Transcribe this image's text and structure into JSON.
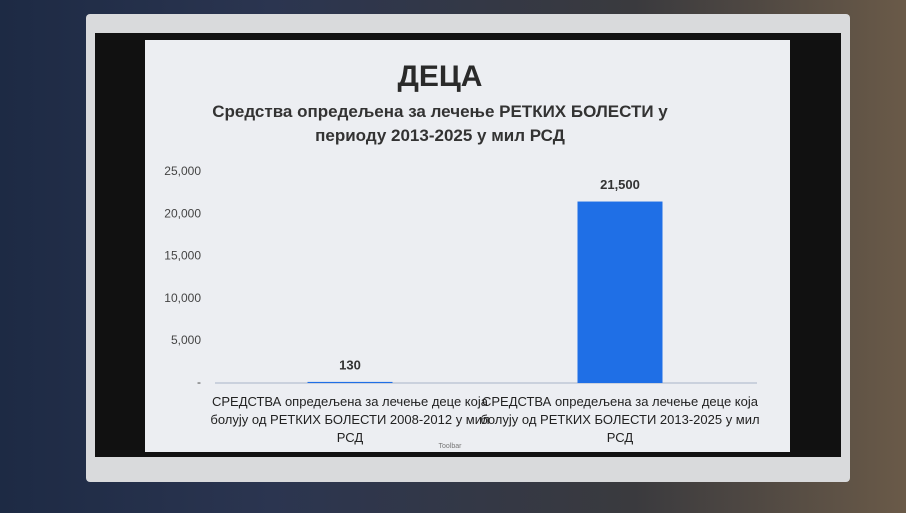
{
  "chart_data": {
    "type": "bar",
    "title": "ДЕЦА",
    "subtitle": "Средства опредељена за лечење РЕТКИХ БОЛЕСТИ у периоду 2013-2025  у мил РСД",
    "categories": [
      "СРЕДСТВА опредељена за лечење деце која болују од РЕТКИХ БОЛЕСТИ 2008-2012 у мил РСД",
      "СРЕДСТВА опредељена за лечење деце која болују од РЕТКИХ БОЛЕСТИ 2013-2025 у мил РСД"
    ],
    "values": [
      130,
      21500
    ],
    "value_labels": [
      "130",
      "21,500"
    ],
    "color": "#1f6fe6",
    "ylim": [
      0,
      25000
    ],
    "yticks": [
      {
        "value": 0,
        "label": "-"
      },
      {
        "value": 5000,
        "label": "5,000"
      },
      {
        "value": 10000,
        "label": "10,000"
      },
      {
        "value": 15000,
        "label": "15,000"
      },
      {
        "value": 20000,
        "label": "20,000"
      },
      {
        "value": 25000,
        "label": "25,000"
      }
    ],
    "grid": false
  },
  "screen": {
    "toolbar": "Toolbar"
  }
}
